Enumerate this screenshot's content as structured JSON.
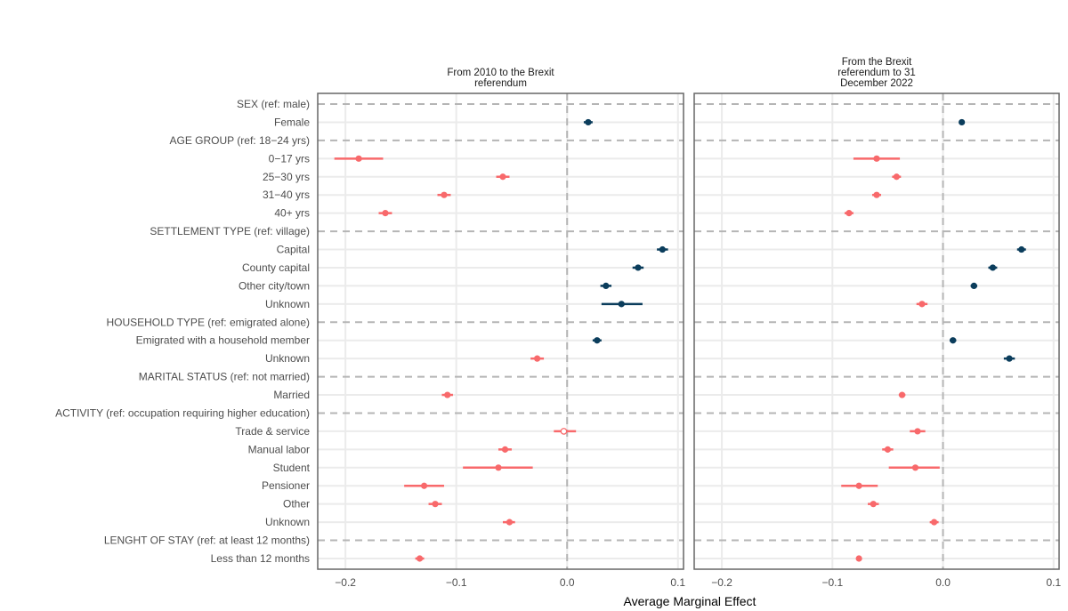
{
  "chart_data": {
    "type": "forest",
    "xlabel": "Average Marginal Effect",
    "xlim": [
      -0.225,
      0.105
    ],
    "xticks": [
      -0.2,
      -0.1,
      0.0,
      0.1
    ],
    "xtick_labels": [
      "−0.2",
      "−0.1",
      "0.0",
      "0.1"
    ],
    "grid": true,
    "colors": {
      "positive": "#0b3d5c",
      "negative": "#f8696b",
      "reference_line": "#b5b5b5"
    },
    "rows": [
      {
        "label": "SEX (ref: male)",
        "header": true
      },
      {
        "label": "Female"
      },
      {
        "label": "AGE GROUP (ref: 18−24 yrs)",
        "header": true
      },
      {
        "label": "0−17 yrs"
      },
      {
        "label": "25−30 yrs"
      },
      {
        "label": "31−40 yrs"
      },
      {
        "label": "40+ yrs"
      },
      {
        "label": "SETTLEMENT TYPE (ref: village)",
        "header": true
      },
      {
        "label": "Capital"
      },
      {
        "label": "County capital"
      },
      {
        "label": "Other city/town"
      },
      {
        "label": "Unknown"
      },
      {
        "label": "HOUSEHOLD TYPE (ref: emigrated alone)",
        "header": true
      },
      {
        "label": "Emigrated with a household member"
      },
      {
        "label": "Unknown"
      },
      {
        "label": "MARITAL STATUS (ref: not married)",
        "header": true
      },
      {
        "label": "Married"
      },
      {
        "label": "ACTIVITY (ref: occupation requiring higher education)",
        "header": true
      },
      {
        "label": "Trade & service"
      },
      {
        "label": "Manual labor"
      },
      {
        "label": "Student"
      },
      {
        "label": "Pensioner"
      },
      {
        "label": "Other"
      },
      {
        "label": "Unknown"
      },
      {
        "label": "LENGHT OF STAY (ref: at least 12 months)",
        "header": true
      },
      {
        "label": "Less than 12 months"
      }
    ],
    "panels": [
      {
        "title_lines": [
          "From 2010 to the Brexit",
          "referendum"
        ],
        "points": [
          {
            "row": 1,
            "est": 0.019,
            "lo": 0.015,
            "hi": 0.023,
            "sig": true
          },
          {
            "row": 3,
            "est": -0.188,
            "lo": -0.21,
            "hi": -0.166,
            "sig": true
          },
          {
            "row": 4,
            "est": -0.058,
            "lo": -0.064,
            "hi": -0.052,
            "sig": true
          },
          {
            "row": 5,
            "est": -0.111,
            "lo": -0.117,
            "hi": -0.105,
            "sig": true
          },
          {
            "row": 6,
            "est": -0.164,
            "lo": -0.17,
            "hi": -0.158,
            "sig": true
          },
          {
            "row": 8,
            "est": 0.086,
            "lo": 0.081,
            "hi": 0.091,
            "sig": true
          },
          {
            "row": 9,
            "est": 0.064,
            "lo": 0.059,
            "hi": 0.069,
            "sig": true
          },
          {
            "row": 10,
            "est": 0.035,
            "lo": 0.03,
            "hi": 0.04,
            "sig": true
          },
          {
            "row": 11,
            "est": 0.049,
            "lo": 0.031,
            "hi": 0.068,
            "sig": true
          },
          {
            "row": 13,
            "est": 0.027,
            "lo": 0.023,
            "hi": 0.031,
            "sig": true
          },
          {
            "row": 14,
            "est": -0.027,
            "lo": -0.033,
            "hi": -0.021,
            "sig": true
          },
          {
            "row": 16,
            "est": -0.108,
            "lo": -0.113,
            "hi": -0.103,
            "sig": true
          },
          {
            "row": 18,
            "est": -0.003,
            "lo": -0.012,
            "hi": 0.008,
            "sig": false
          },
          {
            "row": 19,
            "est": -0.056,
            "lo": -0.062,
            "hi": -0.05,
            "sig": true
          },
          {
            "row": 20,
            "est": -0.062,
            "lo": -0.094,
            "hi": -0.031,
            "sig": true
          },
          {
            "row": 21,
            "est": -0.129,
            "lo": -0.147,
            "hi": -0.111,
            "sig": true
          },
          {
            "row": 22,
            "est": -0.119,
            "lo": -0.125,
            "hi": -0.113,
            "sig": true
          },
          {
            "row": 23,
            "est": -0.052,
            "lo": -0.058,
            "hi": -0.047,
            "sig": true
          },
          {
            "row": 25,
            "est": -0.133,
            "lo": -0.137,
            "hi": -0.129,
            "sig": true
          }
        ]
      },
      {
        "title_lines": [
          "From the Brexit",
          "referendum to 31",
          "December 2022"
        ],
        "points": [
          {
            "row": 1,
            "est": 0.017,
            "lo": 0.015,
            "hi": 0.019,
            "sig": true
          },
          {
            "row": 3,
            "est": -0.06,
            "lo": -0.081,
            "hi": -0.039,
            "sig": true
          },
          {
            "row": 4,
            "est": -0.042,
            "lo": -0.046,
            "hi": -0.038,
            "sig": true
          },
          {
            "row": 5,
            "est": -0.06,
            "lo": -0.064,
            "hi": -0.056,
            "sig": true
          },
          {
            "row": 6,
            "est": -0.085,
            "lo": -0.089,
            "hi": -0.081,
            "sig": true
          },
          {
            "row": 8,
            "est": 0.071,
            "lo": 0.067,
            "hi": 0.075,
            "sig": true
          },
          {
            "row": 9,
            "est": 0.045,
            "lo": 0.041,
            "hi": 0.049,
            "sig": true
          },
          {
            "row": 10,
            "est": 0.028,
            "lo": 0.025,
            "hi": 0.031,
            "sig": true
          },
          {
            "row": 11,
            "est": -0.019,
            "lo": -0.024,
            "hi": -0.014,
            "sig": true
          },
          {
            "row": 13,
            "est": 0.009,
            "lo": 0.006,
            "hi": 0.012,
            "sig": true
          },
          {
            "row": 14,
            "est": 0.06,
            "lo": 0.055,
            "hi": 0.065,
            "sig": true
          },
          {
            "row": 16,
            "est": -0.037,
            "lo": -0.04,
            "hi": -0.034,
            "sig": true
          },
          {
            "row": 18,
            "est": -0.023,
            "lo": -0.03,
            "hi": -0.016,
            "sig": true
          },
          {
            "row": 19,
            "est": -0.05,
            "lo": -0.055,
            "hi": -0.045,
            "sig": true
          },
          {
            "row": 20,
            "est": -0.025,
            "lo": -0.049,
            "hi": -0.003,
            "sig": true
          },
          {
            "row": 21,
            "est": -0.076,
            "lo": -0.092,
            "hi": -0.059,
            "sig": true
          },
          {
            "row": 22,
            "est": -0.063,
            "lo": -0.068,
            "hi": -0.058,
            "sig": true
          },
          {
            "row": 23,
            "est": -0.008,
            "lo": -0.012,
            "hi": -0.004,
            "sig": true
          },
          {
            "row": 25,
            "est": -0.076,
            "lo": -0.077,
            "hi": -0.075,
            "sig": true
          }
        ]
      }
    ]
  }
}
